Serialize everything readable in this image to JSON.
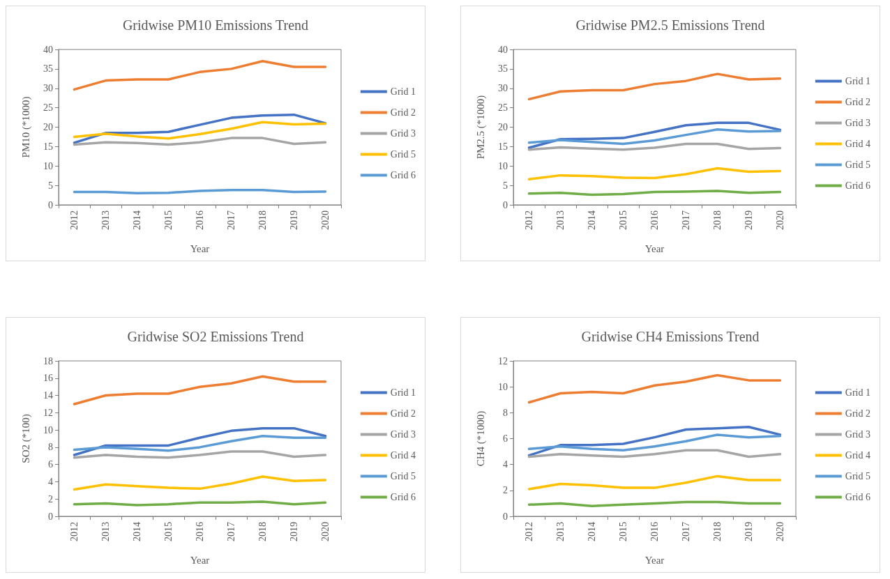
{
  "chart_data": [
    {
      "type": "line",
      "title": "Gridwise PM10 Emissions Trend",
      "xlabel": "Year",
      "ylabel": "PM10 (*1000)",
      "categories": [
        "2012",
        "2013",
        "2014",
        "2015",
        "2016",
        "2017",
        "2018",
        "2019",
        "2020"
      ],
      "ylim": [
        0,
        40
      ],
      "yticks": [
        0,
        5,
        10,
        15,
        20,
        25,
        30,
        35,
        40
      ],
      "grid": false,
      "legend": "right",
      "marker": "none",
      "line_style": "solid",
      "series": [
        {
          "name": "Grid 1",
          "color": "#4472c4",
          "values": [
            16,
            18.5,
            18.5,
            18.8,
            20.6,
            22.4,
            23,
            23.2,
            21
          ]
        },
        {
          "name": "Grid 2",
          "color": "#ed7d31",
          "values": [
            29.7,
            32,
            32.3,
            32.3,
            34.2,
            35,
            37,
            35.5,
            35.5
          ]
        },
        {
          "name": "Grid 3",
          "color": "#a5a5a5",
          "values": [
            15.5,
            16.1,
            15.9,
            15.5,
            16.1,
            17.2,
            17.2,
            15.7,
            16.1
          ]
        },
        {
          "name": "Grid 5",
          "color": "#ffc000",
          "values": [
            17.5,
            18.3,
            17.6,
            17.1,
            18.2,
            19.6,
            21.3,
            20.7,
            20.9
          ]
        },
        {
          "name": "Grid 6",
          "color": "#5b9bd5",
          "values": [
            3.3,
            3.3,
            3,
            3.1,
            3.6,
            3.8,
            3.8,
            3.3,
            3.4
          ]
        }
      ]
    },
    {
      "type": "line",
      "title": "Gridwise PM2.5 Emissions Trend",
      "xlabel": "Year",
      "ylabel": "PM2.5 (*1000)",
      "categories": [
        "2012",
        "2013",
        "2014",
        "2015",
        "2016",
        "2017",
        "2018",
        "2019",
        "2020"
      ],
      "ylim": [
        0,
        40
      ],
      "yticks": [
        0,
        5,
        10,
        15,
        20,
        25,
        30,
        35,
        40
      ],
      "grid": false,
      "legend": "right",
      "marker": "none",
      "line_style": "solid",
      "series": [
        {
          "name": "Grid 1",
          "color": "#4472c4",
          "values": [
            14.7,
            16.9,
            17,
            17.2,
            18.8,
            20.5,
            21.1,
            21.1,
            19.3
          ]
        },
        {
          "name": "Grid 2",
          "color": "#ed7d31",
          "values": [
            27.2,
            29.2,
            29.5,
            29.5,
            31.1,
            31.9,
            33.7,
            32.3,
            32.5
          ]
        },
        {
          "name": "Grid 3",
          "color": "#a5a5a5",
          "values": [
            14.2,
            14.8,
            14.5,
            14.2,
            14.7,
            15.7,
            15.7,
            14.4,
            14.6
          ]
        },
        {
          "name": "Grid 4",
          "color": "#ffc000",
          "values": [
            6.6,
            7.6,
            7.4,
            7,
            6.9,
            7.9,
            9.4,
            8.5,
            8.7
          ]
        },
        {
          "name": "Grid 5",
          "color": "#5b9bd5",
          "values": [
            16,
            16.7,
            16.2,
            15.7,
            16.6,
            18,
            19.4,
            18.9,
            19
          ]
        },
        {
          "name": "Grid 6",
          "color": "#70ad47",
          "values": [
            2.9,
            3.1,
            2.6,
            2.8,
            3.3,
            3.4,
            3.6,
            3.1,
            3.3
          ]
        }
      ]
    },
    {
      "type": "line",
      "title": "Gridwise SO2 Emissions Trend",
      "xlabel": "Year",
      "ylabel": "SO2 (*100)",
      "categories": [
        "2012",
        "2013",
        "2014",
        "2015",
        "2016",
        "2017",
        "2018",
        "2019",
        "2020"
      ],
      "ylim": [
        0,
        18
      ],
      "yticks": [
        0,
        2,
        4,
        6,
        8,
        10,
        12,
        14,
        16,
        18
      ],
      "grid": false,
      "legend": "right",
      "marker": "none",
      "line_style": "solid",
      "series": [
        {
          "name": "Grid 1",
          "color": "#4472c4",
          "values": [
            7.1,
            8.2,
            8.2,
            8.2,
            9.1,
            9.9,
            10.2,
            10.2,
            9.3
          ]
        },
        {
          "name": "Grid 2",
          "color": "#ed7d31",
          "values": [
            13,
            14,
            14.2,
            14.2,
            15,
            15.4,
            16.2,
            15.6,
            15.6
          ]
        },
        {
          "name": "Grid 3",
          "color": "#a5a5a5",
          "values": [
            6.8,
            7.1,
            6.9,
            6.8,
            7.1,
            7.5,
            7.5,
            6.9,
            7.1
          ]
        },
        {
          "name": "Grid 4",
          "color": "#ffc000",
          "values": [
            3.1,
            3.7,
            3.5,
            3.3,
            3.2,
            3.8,
            4.6,
            4.1,
            4.2
          ]
        },
        {
          "name": "Grid 5",
          "color": "#5b9bd5",
          "values": [
            7.7,
            8,
            7.8,
            7.6,
            8,
            8.7,
            9.3,
            9.1,
            9.1
          ]
        },
        {
          "name": "Grid 6",
          "color": "#70ad47",
          "values": [
            1.4,
            1.5,
            1.3,
            1.4,
            1.6,
            1.6,
            1.7,
            1.4,
            1.6
          ]
        }
      ]
    },
    {
      "type": "line",
      "title": "Gridwise CH4 Emissions Trend",
      "xlabel": "Year",
      "ylabel": "CH4 (*1000)",
      "categories": [
        "2012",
        "2013",
        "2014",
        "2015",
        "2016",
        "2017",
        "2018",
        "2019",
        "2020"
      ],
      "ylim": [
        0,
        12
      ],
      "yticks": [
        0,
        2,
        4,
        6,
        8,
        10,
        12
      ],
      "grid": false,
      "legend": "right",
      "marker": "none",
      "line_style": "solid",
      "series": [
        {
          "name": "Grid 1",
          "color": "#4472c4",
          "values": [
            4.7,
            5.5,
            5.5,
            5.6,
            6.1,
            6.7,
            6.8,
            6.9,
            6.3
          ]
        },
        {
          "name": "Grid 2",
          "color": "#ed7d31",
          "values": [
            8.8,
            9.5,
            9.6,
            9.5,
            10.1,
            10.4,
            10.9,
            10.5,
            10.5
          ]
        },
        {
          "name": "Grid 3",
          "color": "#a5a5a5",
          "values": [
            4.6,
            4.8,
            4.7,
            4.6,
            4.8,
            5.1,
            5.1,
            4.6,
            4.8
          ]
        },
        {
          "name": "Grid 4",
          "color": "#ffc000",
          "values": [
            2.1,
            2.5,
            2.4,
            2.2,
            2.2,
            2.6,
            3.1,
            2.8,
            2.8
          ]
        },
        {
          "name": "Grid 5",
          "color": "#5b9bd5",
          "values": [
            5.2,
            5.4,
            5.2,
            5.1,
            5.4,
            5.8,
            6.3,
            6.1,
            6.2
          ]
        },
        {
          "name": "Grid 6",
          "color": "#70ad47",
          "values": [
            0.9,
            1,
            0.8,
            0.9,
            1,
            1.1,
            1.1,
            1,
            1
          ]
        }
      ]
    }
  ]
}
